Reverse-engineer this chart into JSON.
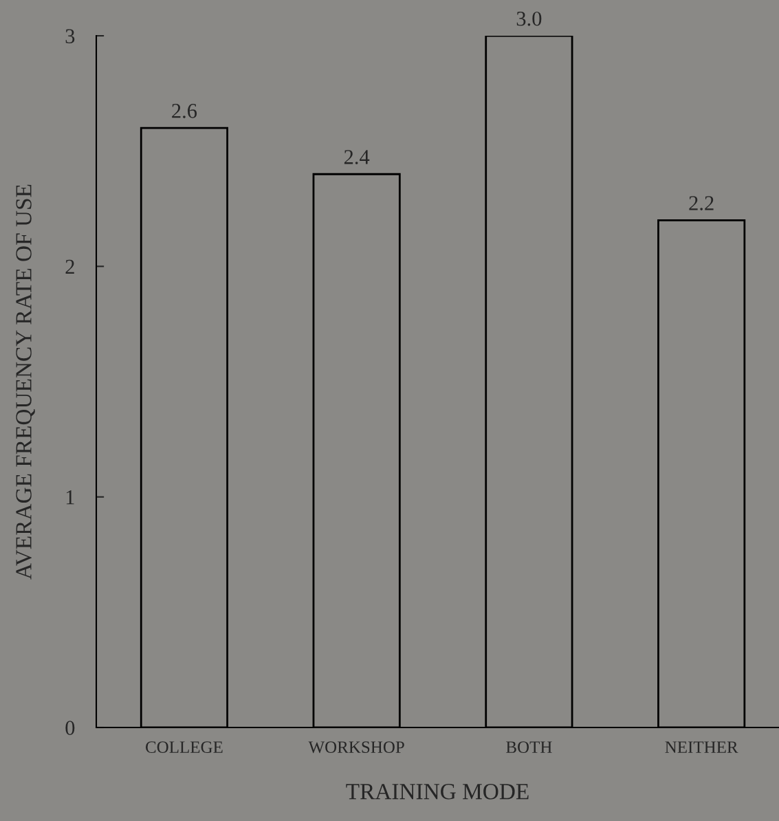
{
  "chart_data": {
    "type": "bar",
    "xlabel": "TRAINING MODE",
    "ylabel": "AVERAGE FREQUENCY RATE OF USE",
    "categories": [
      "COLLEGE",
      "WORKSHOP",
      "BOTH",
      "NEITHER"
    ],
    "values": [
      2.6,
      2.4,
      3.0,
      2.2
    ],
    "value_labels": [
      "2.6",
      "2.4",
      "3.0",
      "2.2"
    ],
    "color": "#000000",
    "ylim": [
      0,
      3
    ],
    "yticks": [
      0,
      1,
      2,
      3
    ],
    "grid": false,
    "legend": false
  }
}
